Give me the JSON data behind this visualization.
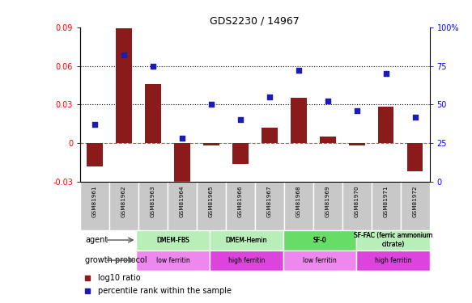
{
  "title": "GDS2230 / 14967",
  "samples": [
    "GSM81961",
    "GSM81962",
    "GSM81963",
    "GSM81964",
    "GSM81965",
    "GSM81966",
    "GSM81967",
    "GSM81968",
    "GSM81969",
    "GSM81970",
    "GSM81971",
    "GSM81972"
  ],
  "log10_ratio": [
    -0.018,
    0.089,
    0.046,
    -0.038,
    -0.002,
    -0.016,
    0.012,
    0.035,
    0.005,
    -0.002,
    0.028,
    -0.022
  ],
  "percentile_rank": [
    37,
    82,
    75,
    28,
    50,
    40,
    55,
    72,
    52,
    46,
    70,
    42
  ],
  "bar_color": "#8B1A1A",
  "dot_color": "#1C1CB4",
  "ylim_left": [
    -0.03,
    0.09
  ],
  "ylim_right": [
    0,
    100
  ],
  "yticks_left": [
    -0.03,
    0,
    0.03,
    0.06,
    0.09
  ],
  "yticks_right": [
    0,
    25,
    50,
    75,
    100
  ],
  "hlines": [
    0.03,
    0.06
  ],
  "agent_groups": [
    {
      "label": "DMEM-FBS",
      "start": 0,
      "end": 3,
      "color": "#B8EEB8"
    },
    {
      "label": "DMEM-Hemin",
      "start": 3,
      "end": 6,
      "color": "#B8EEB8"
    },
    {
      "label": "SF-0",
      "start": 6,
      "end": 9,
      "color": "#66DD66"
    },
    {
      "label": "SF-FAC (ferric ammonium\ncitrate)",
      "start": 9,
      "end": 12,
      "color": "#B8EEB8"
    }
  ],
  "protocol_groups": [
    {
      "label": "low ferritin",
      "start": 0,
      "end": 3,
      "color": "#EE88EE"
    },
    {
      "label": "high ferritin",
      "start": 3,
      "end": 6,
      "color": "#DD44DD"
    },
    {
      "label": "low ferritin",
      "start": 6,
      "end": 9,
      "color": "#EE88EE"
    },
    {
      "label": "high ferritin",
      "start": 9,
      "end": 12,
      "color": "#DD44DD"
    }
  ],
  "agent_label": "agent",
  "protocol_label": "growth protocol",
  "legend1": "log10 ratio",
  "legend2": "percentile rank within the sample",
  "cell_bg": "#C8C8C8"
}
